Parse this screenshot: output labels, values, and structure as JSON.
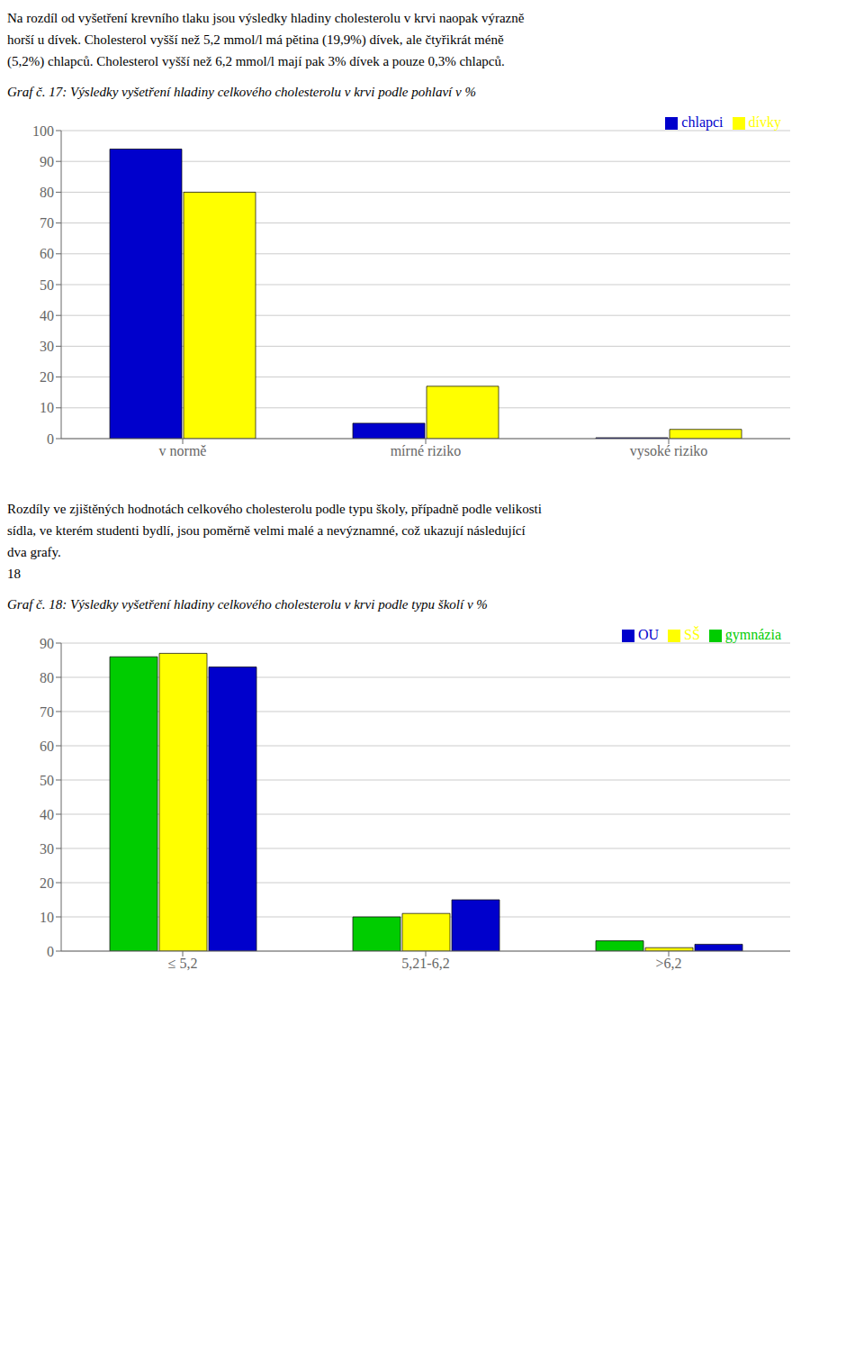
{
  "chart_data": [
    {
      "type": "bar",
      "title": "Graf č. 17: Výsledky vyšetření hladiny celkového cholesterolu v krvi podle pohlaví v %",
      "annotations": [
        "Na rozdíl od vyšetření krevního tlaku jsou výsledky hladiny cholesterolu v krvi naopak výrazně",
        "horší u dívek. Cholesterol vyšší než 5,2 mmol/l má pětina (19,9%) dívek, ale čtyřikrát méně",
        "(5,2%) chlapců. Cholesterol vyšší než 6,2 mmol/l mají pak 3% dívek a pouze 0,3% chlapců."
      ],
      "categories": [
        "v normě",
        "mírné riziko",
        "vysoké riziko"
      ],
      "series": [
        {
          "name": "chlapci",
          "color": "#0000CC",
          "values": [
            94,
            5,
            0.3
          ]
        },
        {
          "name": "dívky",
          "color": "#FFFF00",
          "values": [
            80,
            17,
            3
          ]
        }
      ],
      "ylim": [
        0,
        100
      ],
      "yticks": [
        0,
        10,
        20,
        30,
        40,
        50,
        60,
        70,
        80,
        90,
        100
      ],
      "grid": true,
      "legend": "upper right"
    },
    {
      "type": "bar",
      "title": "Graf č. 18: Výsledky vyšetření hladiny celkového cholesterolu v krvi podle typu školí v %",
      "annotations": [
        "Rozdíly ve zjištěných hodnotách celkového cholesterolu podle typu školy, případně podle velikosti",
        "sídla, ve kterém studenti bydlí, jsou poměrně velmi malé a nevýznamné, což ukazují následující",
        "dva grafy.",
        "18"
      ],
      "categories": [
        "≤ 5,2",
        "5,21-6,2",
        ">6,2"
      ],
      "series": [
        {
          "name": "gymnázia",
          "color": "#00CC00",
          "values": [
            86,
            10,
            3
          ]
        },
        {
          "name": "SŠ",
          "color": "#FFFF00",
          "values": [
            87,
            11,
            1
          ]
        },
        {
          "name": "OU",
          "color": "#0000CC",
          "values": [
            83,
            15,
            2
          ]
        }
      ],
      "ylim": [
        0,
        90
      ],
      "yticks": [
        0,
        10,
        20,
        30,
        40,
        50,
        60,
        70,
        80,
        90
      ],
      "grid": true,
      "legend": "upper right"
    }
  ]
}
